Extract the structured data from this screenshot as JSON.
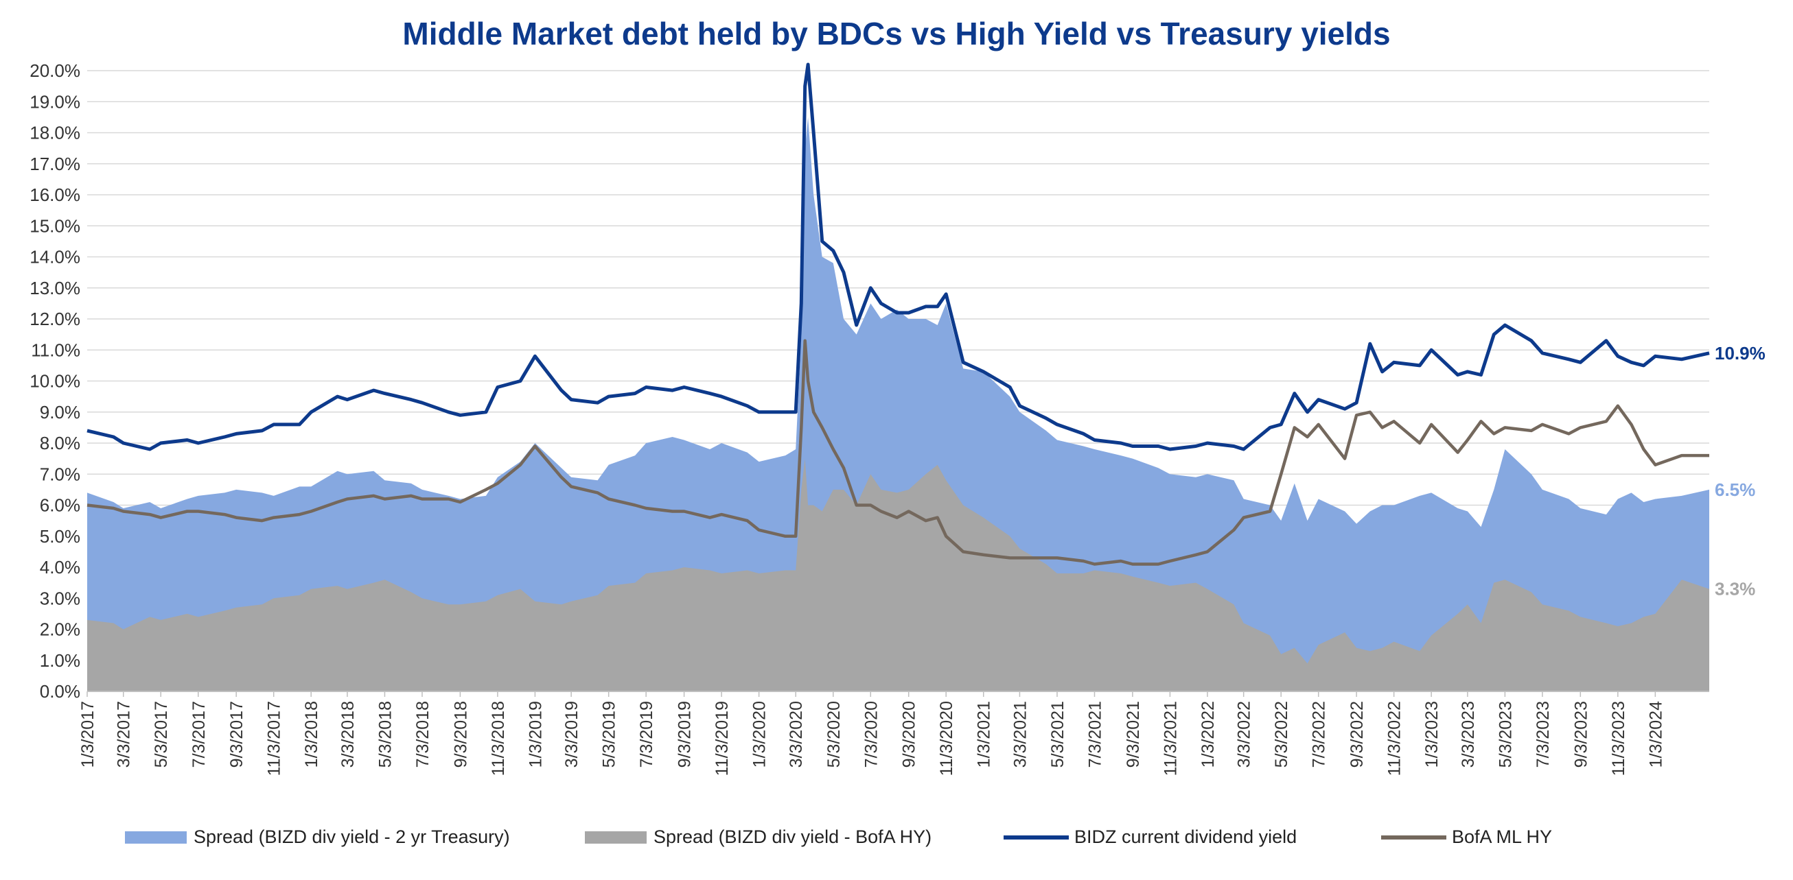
{
  "chart_data": {
    "type": "area",
    "title": "Middle Market debt held by BDCs vs High Yield vs Treasury yields",
    "xlabel": "",
    "ylabel": "",
    "ylim": [
      0,
      20
    ],
    "ytick_step": 1,
    "ytick_labels": [
      "0.0%",
      "1.0%",
      "2.0%",
      "3.0%",
      "4.0%",
      "5.0%",
      "6.0%",
      "7.0%",
      "8.0%",
      "9.0%",
      "10.0%",
      "11.0%",
      "12.0%",
      "13.0%",
      "14.0%",
      "15.0%",
      "16.0%",
      "17.0%",
      "18.0%",
      "19.0%",
      "20.0%"
    ],
    "x_start": "1/3/2017",
    "x_end": "3/31/2024",
    "x_tick_labels": [
      "1/3/2017",
      "3/3/2017",
      "5/3/2017",
      "7/3/2017",
      "9/3/2017",
      "11/3/2017",
      "1/3/2018",
      "3/3/2018",
      "5/3/2018",
      "7/3/2018",
      "9/3/2018",
      "11/3/2018",
      "1/3/2019",
      "3/3/2019",
      "5/3/2019",
      "7/3/2019",
      "9/3/2019",
      "11/3/2019",
      "1/3/2020",
      "3/3/2020",
      "5/3/2020",
      "7/3/2020",
      "9/3/2020",
      "11/3/2020",
      "1/3/2021",
      "3/3/2021",
      "5/3/2021",
      "7/3/2021",
      "9/3/2021",
      "11/3/2021",
      "1/3/2022",
      "3/3/2022",
      "5/3/2022",
      "7/3/2022",
      "9/3/2022",
      "11/3/2022",
      "1/3/2023",
      "3/3/2023",
      "5/3/2023",
      "7/3/2023",
      "9/3/2023",
      "11/3/2023",
      "1/3/2024"
    ],
    "grid": true,
    "legend_position": "bottom",
    "x": [
      "1/3/2017",
      "2/15/2017",
      "3/3/2017",
      "4/15/2017",
      "5/3/2017",
      "6/15/2017",
      "7/3/2017",
      "8/15/2017",
      "9/3/2017",
      "10/15/2017",
      "11/3/2017",
      "12/15/2017",
      "1/3/2018",
      "2/15/2018",
      "3/3/2018",
      "4/15/2018",
      "5/3/2018",
      "6/15/2018",
      "7/3/2018",
      "8/15/2018",
      "9/3/2018",
      "10/15/2018",
      "11/3/2018",
      "12/10/2018",
      "1/3/2019",
      "2/15/2019",
      "3/3/2019",
      "4/15/2019",
      "5/3/2019",
      "6/15/2019",
      "7/3/2019",
      "8/15/2019",
      "9/3/2019",
      "10/15/2019",
      "11/3/2019",
      "12/15/2019",
      "1/3/2020",
      "2/15/2020",
      "3/3/2020",
      "3/12/2020",
      "3/18/2020",
      "3/23/2020",
      "4/1/2020",
      "4/15/2020",
      "5/3/2020",
      "5/20/2020",
      "6/10/2020",
      "7/3/2020",
      "7/20/2020",
      "8/15/2020",
      "9/3/2020",
      "10/1/2020",
      "10/20/2020",
      "11/3/2020",
      "12/1/2020",
      "1/3/2021",
      "2/15/2021",
      "3/3/2021",
      "4/15/2021",
      "5/3/2021",
      "6/15/2021",
      "7/3/2021",
      "8/15/2021",
      "9/3/2021",
      "10/15/2021",
      "11/3/2021",
      "12/15/2021",
      "1/3/2022",
      "2/15/2022",
      "3/3/2022",
      "4/15/2022",
      "5/3/2022",
      "5/25/2022",
      "6/15/2022",
      "7/3/2022",
      "8/15/2022",
      "9/3/2022",
      "9/25/2022",
      "10/15/2022",
      "11/3/2022",
      "12/15/2022",
      "1/3/2023",
      "2/15/2023",
      "3/3/2023",
      "3/25/2023",
      "4/15/2023",
      "5/3/2023",
      "6/15/2023",
      "7/3/2023",
      "8/15/2023",
      "9/3/2023",
      "10/15/2023",
      "11/3/2023",
      "11/25/2023",
      "12/15/2023",
      "1/3/2024",
      "2/15/2024",
      "3/31/2024"
    ],
    "series": [
      {
        "name": "Spread (BIZD div yield - 2 yr Treasury)",
        "kind": "area",
        "color": "#86a8e0",
        "values": [
          6.4,
          6.1,
          5.9,
          6.1,
          5.9,
          6.2,
          6.3,
          6.4,
          6.5,
          6.4,
          6.3,
          6.6,
          6.6,
          7.1,
          7.0,
          7.1,
          6.8,
          6.7,
          6.5,
          6.3,
          6.2,
          6.3,
          6.9,
          7.4,
          8.0,
          7.2,
          6.9,
          6.8,
          7.3,
          7.6,
          8.0,
          8.2,
          8.1,
          7.8,
          8.0,
          7.7,
          7.4,
          7.6,
          7.8,
          11.5,
          17.5,
          18.5,
          16.0,
          14.0,
          13.8,
          12.0,
          11.5,
          12.5,
          12.0,
          12.3,
          12.0,
          12.0,
          11.8,
          12.5,
          10.4,
          10.3,
          9.5,
          9.0,
          8.4,
          8.1,
          7.9,
          7.8,
          7.6,
          7.5,
          7.2,
          7.0,
          6.9,
          7.0,
          6.8,
          6.2,
          6.0,
          5.5,
          6.7,
          5.5,
          6.2,
          5.8,
          5.4,
          5.8,
          6.0,
          6.0,
          6.3,
          6.4,
          5.9,
          5.8,
          5.3,
          6.5,
          7.8,
          7.0,
          6.5,
          6.2,
          5.9,
          5.7,
          6.2,
          6.4,
          6.1,
          6.2,
          6.3,
          6.5
        ]
      },
      {
        "name": "Spread (BIZD div yield - BofA HY)",
        "kind": "area",
        "color": "#a6a6a6",
        "values": [
          2.3,
          2.2,
          2.0,
          2.4,
          2.3,
          2.5,
          2.4,
          2.6,
          2.7,
          2.8,
          3.0,
          3.1,
          3.3,
          3.4,
          3.3,
          3.5,
          3.6,
          3.2,
          3.0,
          2.8,
          2.8,
          2.9,
          3.1,
          3.3,
          2.9,
          2.8,
          2.9,
          3.1,
          3.4,
          3.5,
          3.8,
          3.9,
          4.0,
          3.9,
          3.8,
          3.9,
          3.8,
          3.9,
          3.9,
          6.5,
          7.5,
          6.0,
          6.0,
          5.8,
          6.5,
          6.5,
          6.0,
          7.0,
          6.5,
          6.4,
          6.5,
          7.0,
          7.3,
          6.8,
          6.0,
          5.6,
          5.0,
          4.6,
          4.1,
          3.8,
          3.8,
          3.9,
          3.8,
          3.7,
          3.5,
          3.4,
          3.5,
          3.3,
          2.8,
          2.2,
          1.8,
          1.2,
          1.4,
          0.9,
          1.5,
          1.9,
          1.4,
          1.3,
          1.4,
          1.6,
          1.3,
          1.8,
          2.5,
          2.8,
          2.2,
          3.5,
          3.6,
          3.2,
          2.8,
          2.6,
          2.4,
          2.2,
          2.1,
          2.2,
          2.4,
          2.5,
          3.6,
          3.3
        ]
      },
      {
        "name": "BIDZ current dividend yield",
        "kind": "line",
        "color": "#0d3a8c",
        "values": [
          8.4,
          8.2,
          8.0,
          7.8,
          8.0,
          8.1,
          8.0,
          8.2,
          8.3,
          8.4,
          8.6,
          8.6,
          9.0,
          9.5,
          9.4,
          9.7,
          9.6,
          9.4,
          9.3,
          9.0,
          8.9,
          9.0,
          9.8,
          10.0,
          10.8,
          9.7,
          9.4,
          9.3,
          9.5,
          9.6,
          9.8,
          9.7,
          9.8,
          9.6,
          9.5,
          9.2,
          9.0,
          9.0,
          9.0,
          12.5,
          19.5,
          20.2,
          18.0,
          14.5,
          14.2,
          13.5,
          11.8,
          13.0,
          12.5,
          12.2,
          12.2,
          12.4,
          12.4,
          12.8,
          10.6,
          10.3,
          9.8,
          9.2,
          8.8,
          8.6,
          8.3,
          8.1,
          8.0,
          7.9,
          7.9,
          7.8,
          7.9,
          8.0,
          7.9,
          7.8,
          8.5,
          8.6,
          9.6,
          9.0,
          9.4,
          9.1,
          9.3,
          11.2,
          10.3,
          10.6,
          10.5,
          11.0,
          10.2,
          10.3,
          10.2,
          11.5,
          11.8,
          11.3,
          10.9,
          10.7,
          10.6,
          11.3,
          10.8,
          10.6,
          10.5,
          10.8,
          10.7,
          10.9
        ]
      },
      {
        "name": "BofA ML HY",
        "kind": "line",
        "color": "#74685d",
        "values": [
          6.0,
          5.9,
          5.8,
          5.7,
          5.6,
          5.8,
          5.8,
          5.7,
          5.6,
          5.5,
          5.6,
          5.7,
          5.8,
          6.1,
          6.2,
          6.3,
          6.2,
          6.3,
          6.2,
          6.2,
          6.1,
          6.5,
          6.7,
          7.3,
          7.9,
          6.9,
          6.6,
          6.4,
          6.2,
          6.0,
          5.9,
          5.8,
          5.8,
          5.6,
          5.7,
          5.5,
          5.2,
          5.0,
          5.0,
          8.5,
          11.3,
          10.0,
          9.0,
          8.5,
          7.8,
          7.2,
          6.0,
          6.0,
          5.8,
          5.6,
          5.8,
          5.5,
          5.6,
          5.0,
          4.5,
          4.4,
          4.3,
          4.3,
          4.3,
          4.3,
          4.2,
          4.1,
          4.2,
          4.1,
          4.1,
          4.2,
          4.4,
          4.5,
          5.2,
          5.6,
          5.8,
          7.0,
          8.5,
          8.2,
          8.6,
          7.5,
          8.9,
          9.0,
          8.5,
          8.7,
          8.0,
          8.6,
          7.7,
          8.1,
          8.7,
          8.3,
          8.5,
          8.4,
          8.6,
          8.3,
          8.5,
          8.7,
          9.2,
          8.6,
          7.8,
          7.3,
          7.6,
          7.6
        ]
      }
    ],
    "end_labels": [
      {
        "text": "10.9%",
        "color": "#0d3a8c",
        "value": 10.9
      },
      {
        "text": "6.5%",
        "color": "#86a8e0",
        "value": 6.5
      },
      {
        "text": "3.3%",
        "color": "#a6a6a6",
        "value": 3.3
      }
    ]
  },
  "legend": [
    {
      "label": "Spread (BIZD div yield - 2 yr Treasury)",
      "kind": "area",
      "color": "#86a8e0"
    },
    {
      "label": "Spread (BIZD div yield - BofA HY)",
      "kind": "area",
      "color": "#a6a6a6"
    },
    {
      "label": "BIDZ current dividend yield",
      "kind": "line",
      "color": "#0d3a8c"
    },
    {
      "label": "BofA ML HY",
      "kind": "line",
      "color": "#74685d"
    }
  ]
}
